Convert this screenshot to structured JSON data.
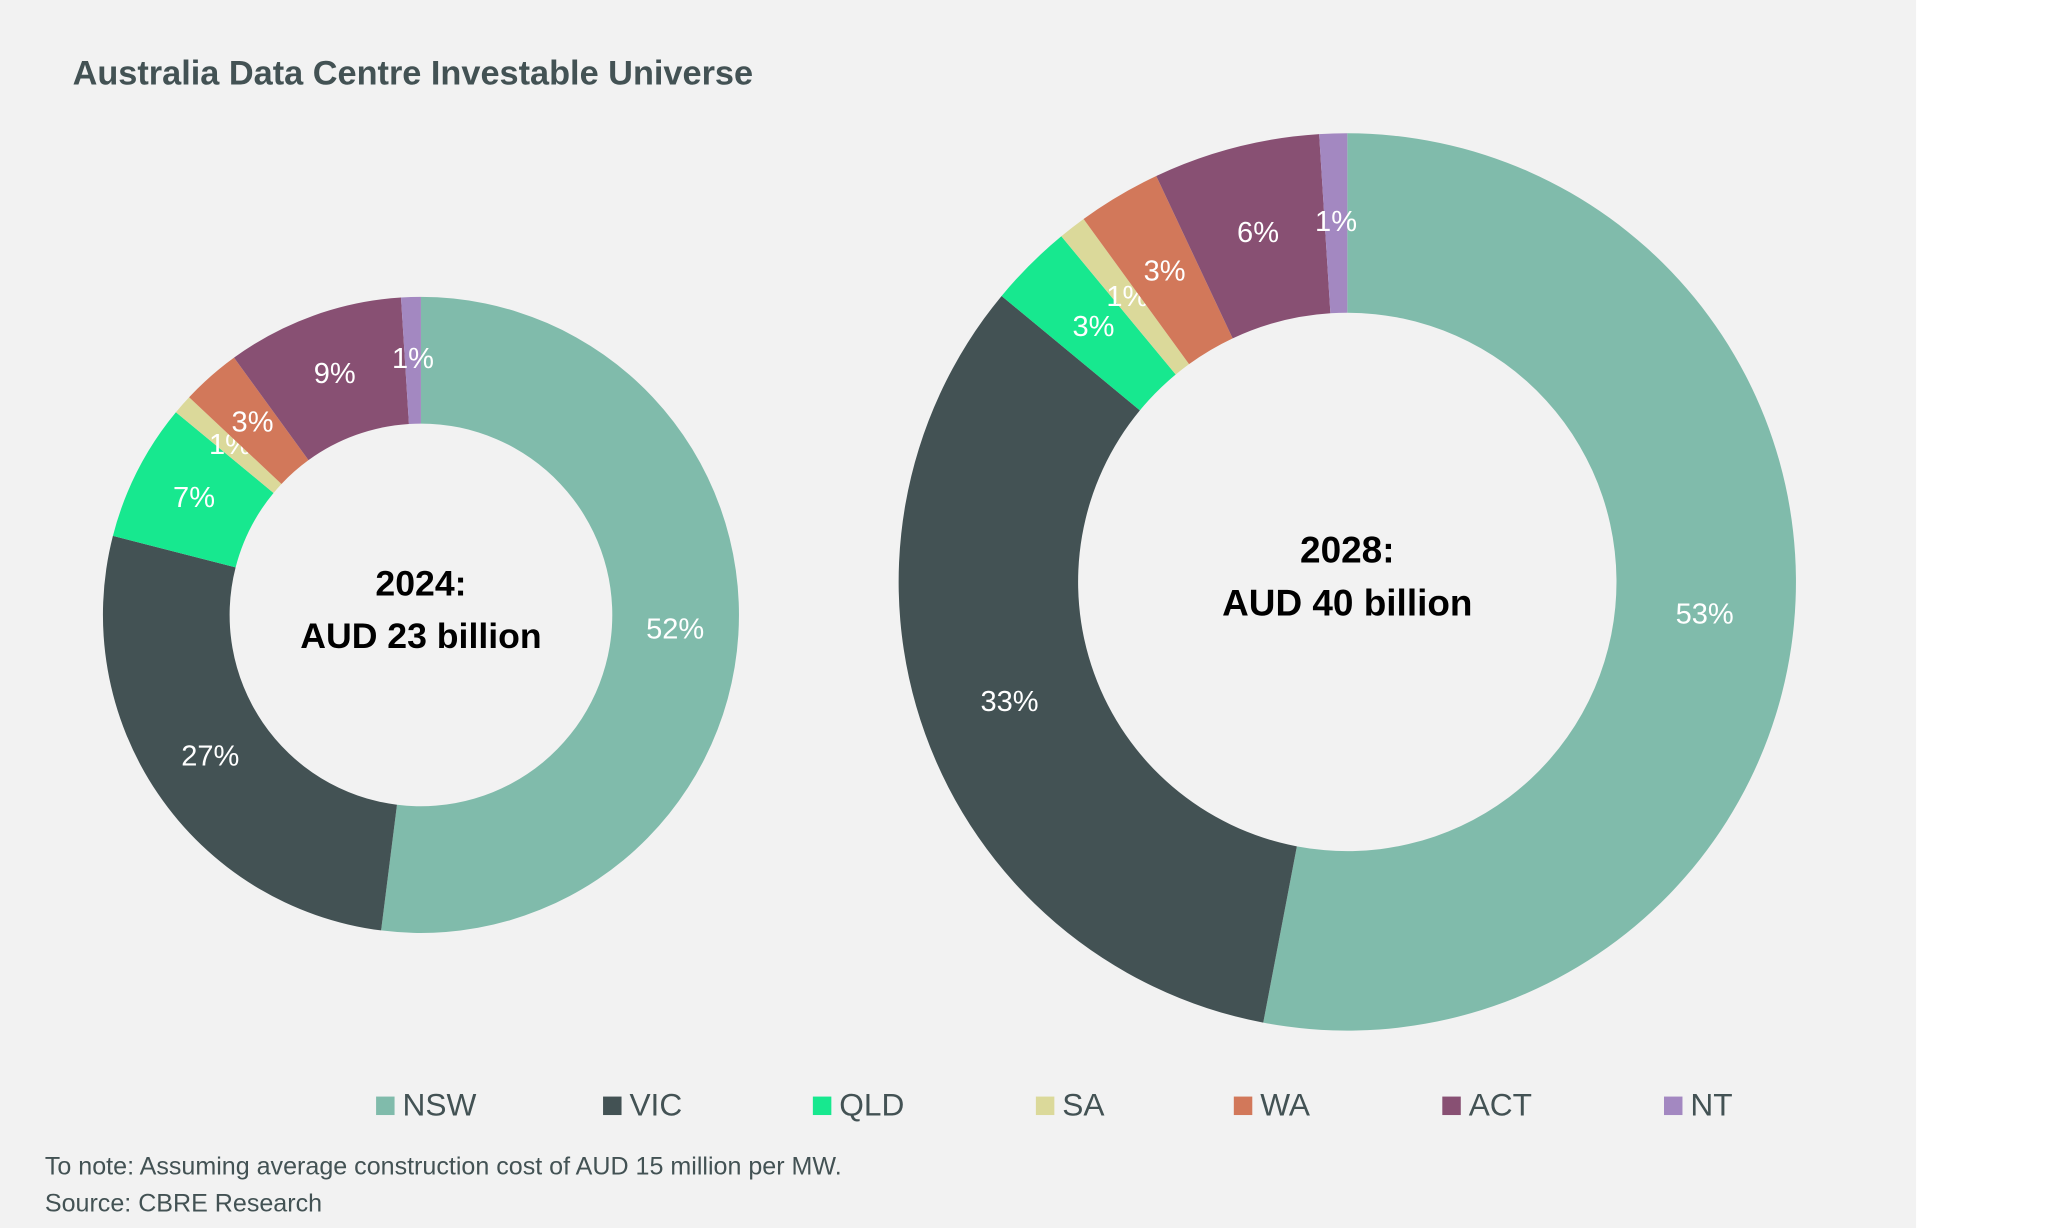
{
  "title": "Australia Data Centre Investable Universe",
  "chart_data": [
    {
      "type": "pie",
      "center_label": [
        "2024:",
        "AUD 23 billion"
      ],
      "categories": [
        "NSW",
        "VIC",
        "QLD",
        "SA",
        "WA",
        "ACT",
        "NT"
      ],
      "colors": [
        "#80bbab",
        "#435254",
        "#17e88f",
        "#dbd99a",
        "#d2785a",
        "#885073",
        "#a388c1"
      ],
      "values": [
        52,
        27,
        7,
        1,
        3,
        9,
        1
      ],
      "value_labels": [
        "52%",
        "27%",
        "7%",
        "1%",
        "3%",
        "9%",
        "1%"
      ]
    },
    {
      "type": "pie",
      "center_label": [
        "2028:",
        "AUD 40 billion"
      ],
      "categories": [
        "NSW",
        "VIC",
        "QLD",
        "SA",
        "WA",
        "ACT",
        "NT"
      ],
      "colors": [
        "#80bbab",
        "#435254",
        "#17e88f",
        "#dbd99a",
        "#d2785a",
        "#885073",
        "#a388c1"
      ],
      "values": [
        53,
        33,
        3,
        1,
        3,
        6,
        1
      ],
      "value_labels": [
        "53%",
        "33%",
        "3%",
        "1%",
        "3%",
        "6%",
        "1%"
      ]
    }
  ],
  "note": "To note: Assuming average construction cost of AUD 15 million per MW.",
  "source": "Source: CBRE Research"
}
